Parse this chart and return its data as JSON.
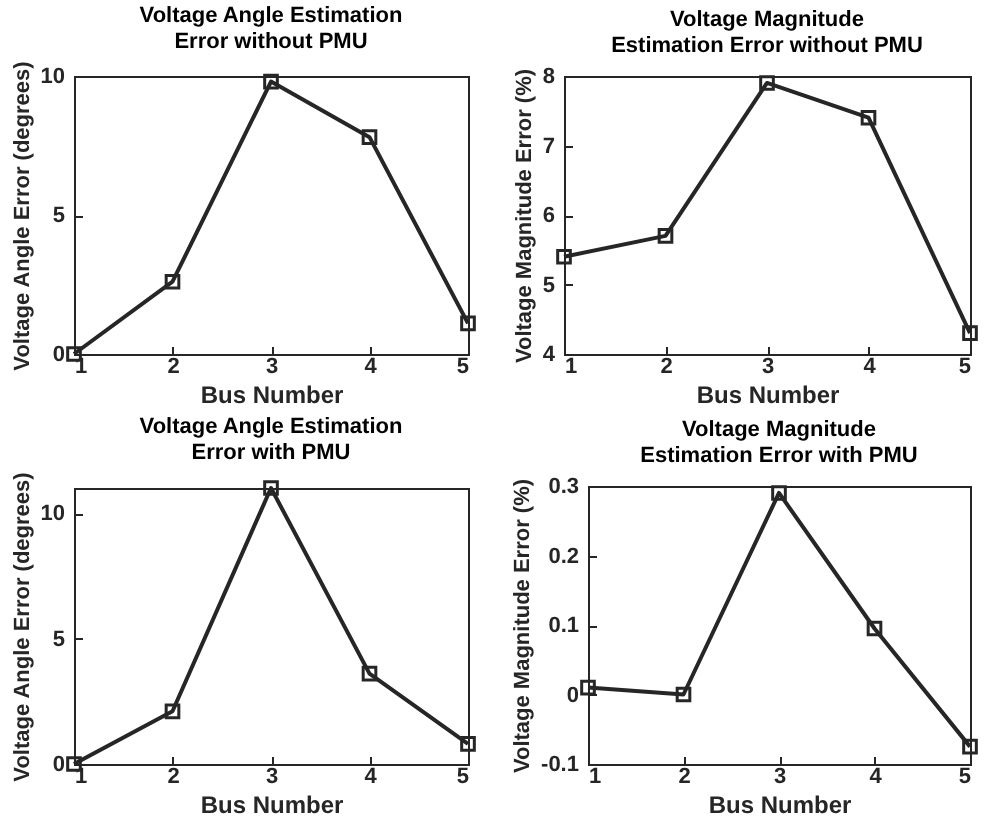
{
  "chart_data": [
    {
      "type": "line",
      "title": "Voltage Angle Estimation Error without PMU",
      "xlabel": "Bus Number",
      "ylabel": "Voltage Angle Error (degrees)",
      "x": [
        1,
        2,
        3,
        4,
        5
      ],
      "xlim": [
        1,
        5
      ],
      "xticks": [
        1,
        2,
        3,
        4,
        5
      ],
      "ylim": [
        0,
        10
      ],
      "yticks": [
        0,
        5,
        10
      ],
      "marker": "square",
      "grid": false,
      "series": [
        {
          "color": "#262626",
          "values": [
            0,
            2.6,
            9.8,
            7.8,
            1.1
          ]
        }
      ]
    },
    {
      "type": "line",
      "title": "Voltage Magnitude Estimation Error without PMU",
      "xlabel": "Bus Number",
      "ylabel": "Voltage Magnitude Error (%)",
      "x": [
        1,
        2,
        3,
        4,
        5
      ],
      "xlim": [
        1,
        5
      ],
      "xticks": [
        1,
        2,
        3,
        4,
        5
      ],
      "ylim": [
        4,
        8
      ],
      "yticks": [
        4,
        5,
        6,
        7,
        8
      ],
      "marker": "square",
      "grid": false,
      "series": [
        {
          "color": "#262626",
          "values": [
            5.4,
            5.7,
            7.9,
            7.4,
            4.3
          ]
        }
      ]
    },
    {
      "type": "line",
      "title": "Voltage Angle Estimation Error with PMU",
      "xlabel": "Bus Number",
      "ylabel": "Voltage Angle Error (degrees)",
      "x": [
        1,
        2,
        3,
        4,
        5
      ],
      "xlim": [
        1,
        5
      ],
      "xticks": [
        1,
        2,
        3,
        4,
        5
      ],
      "ylim": [
        0,
        11
      ],
      "yticks": [
        0,
        5,
        10
      ],
      "marker": "square",
      "grid": false,
      "series": [
        {
          "color": "#262626",
          "values": [
            0,
            2.1,
            11,
            3.6,
            0.8
          ]
        }
      ]
    },
    {
      "type": "line",
      "title": "Voltage Magnitude Estimation Error with PMU",
      "xlabel": "Bus Number",
      "ylabel": "Voltage Magnitude Error (%)",
      "x": [
        1,
        2,
        3,
        4,
        5
      ],
      "xlim": [
        1,
        5
      ],
      "xticks": [
        1,
        2,
        3,
        4,
        5
      ],
      "ylim": [
        -0.1,
        0.3
      ],
      "yticks": [
        -0.1,
        0,
        0.1,
        0.2,
        0.3
      ],
      "marker": "square",
      "grid": false,
      "series": [
        {
          "color": "#262626",
          "values": [
            0.01,
            0,
            0.29,
            0.095,
            -0.075
          ]
        }
      ]
    }
  ]
}
